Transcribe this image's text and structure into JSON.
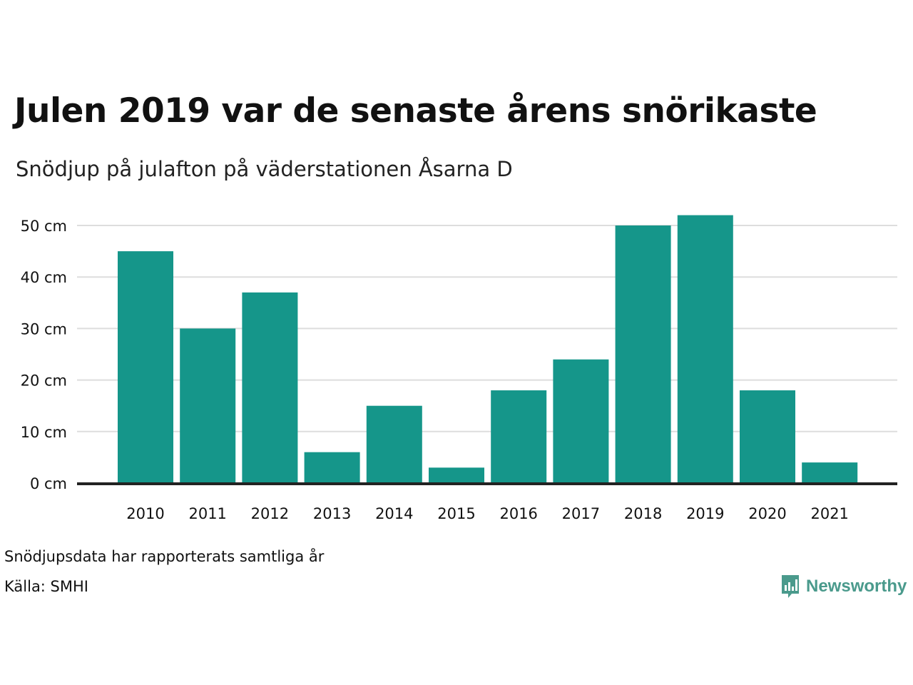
{
  "header": {
    "title": "Julen 2019 var de senaste årens snörikaste",
    "subtitle": "Snödjup på julafton på väderstationen Åsarna D"
  },
  "footer": {
    "note": "Snödjupsdata har rapporterats samtliga år",
    "source": "Källa: SMHI",
    "brand": "Newsworthy"
  },
  "colors": {
    "bar": "#15968a",
    "grid": "#dddddd",
    "axis": "#222222",
    "brand": "#4a9a8c"
  },
  "chart_data": {
    "type": "bar",
    "categories": [
      "2010",
      "2011",
      "2012",
      "2013",
      "2014",
      "2015",
      "2016",
      "2017",
      "2018",
      "2019",
      "2020",
      "2021"
    ],
    "values": [
      45,
      30,
      37,
      6,
      15,
      3,
      18,
      24,
      50,
      52,
      18,
      4
    ],
    "ylim": [
      0,
      50
    ],
    "yticks": [
      0,
      10,
      20,
      30,
      40,
      50
    ],
    "ytick_labels": [
      "0 cm",
      "10 cm",
      "20 cm",
      "30 cm",
      "40 cm",
      "50 cm"
    ],
    "grid": true,
    "legend": "none"
  }
}
